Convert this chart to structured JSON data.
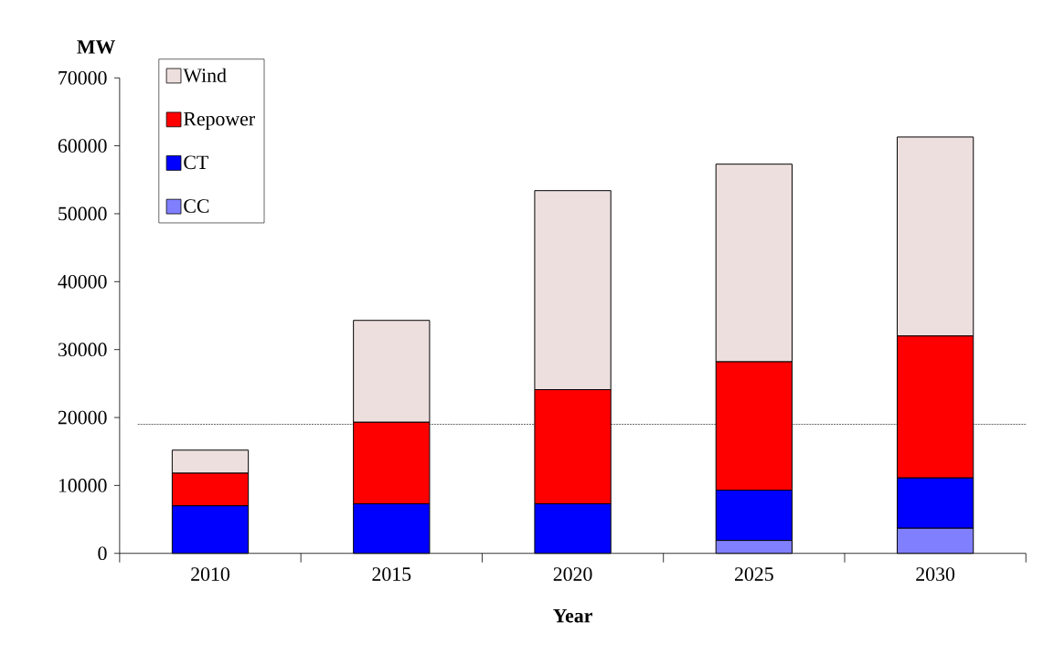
{
  "chart_data": {
    "type": "bar",
    "stacked": true,
    "categories": [
      "2010",
      "2015",
      "2020",
      "2025",
      "2030"
    ],
    "xlabel": "Year",
    "ylabel": "MW",
    "ylim": [
      0,
      70000
    ],
    "yticks": [
      0,
      10000,
      20000,
      30000,
      40000,
      50000,
      60000,
      70000
    ],
    "series": [
      {
        "name": "CC",
        "color": "#8080ff",
        "values": [
          0,
          0,
          0,
          1900,
          3700
        ]
      },
      {
        "name": "CT",
        "color": "#0000ff",
        "values": [
          7000,
          7300,
          7300,
          7400,
          7400
        ]
      },
      {
        "name": "Repower",
        "color": "#ff0000",
        "values": [
          4800,
          12000,
          16800,
          18900,
          20900
        ]
      },
      {
        "name": "Wind",
        "color": "#eedfdf",
        "values": [
          3400,
          15000,
          29300,
          29100,
          29300
        ]
      }
    ],
    "ref_lines": [
      {
        "axis": "y",
        "value": 19000,
        "color": "#000000",
        "line_style": "dashed"
      }
    ],
    "legend": "top left"
  }
}
